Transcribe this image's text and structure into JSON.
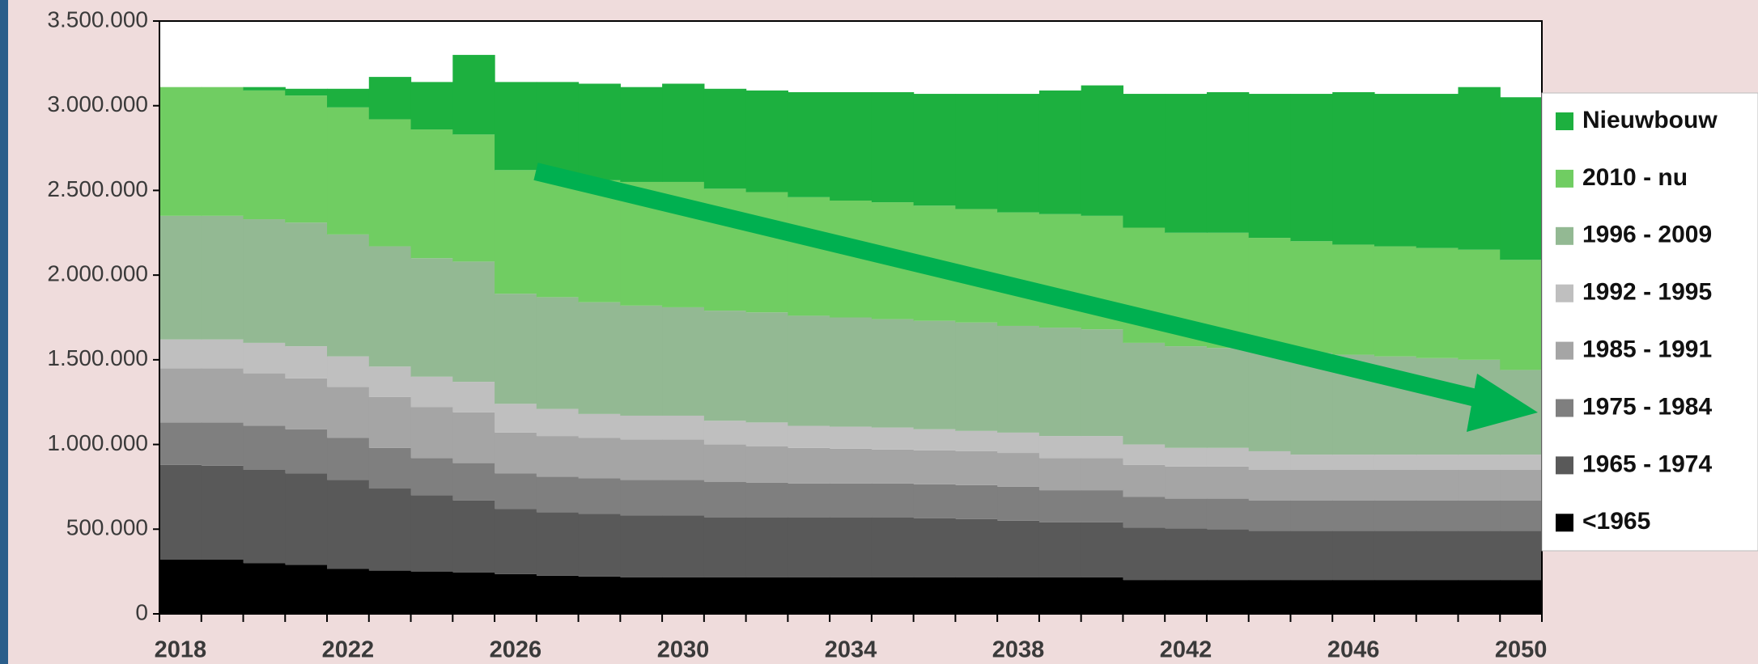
{
  "chart_data": {
    "type": "stacked-step-area",
    "categories": [
      "2018",
      null,
      null,
      null,
      "2022",
      null,
      null,
      null,
      "2026",
      null,
      null,
      null,
      "2030",
      null,
      null,
      null,
      "2034",
      null,
      null,
      null,
      "2038",
      null,
      null,
      null,
      "2042",
      null,
      null,
      null,
      "2046",
      null,
      null,
      null,
      "2050"
    ],
    "ylim": [
      0,
      3500000
    ],
    "yticks": [
      0,
      {
        "value": 500000,
        "label": "500.000"
      },
      {
        "value": 1000000,
        "label": "1.000.000"
      },
      {
        "value": 1500000,
        "label": "1.500.000"
      },
      {
        "value": 2000000,
        "label": "2.000.000"
      },
      {
        "value": 2500000,
        "label": "2.500.000"
      },
      {
        "value": 3000000,
        "label": "3.000.000"
      },
      {
        "value": 3500000,
        "label": "3.500.000"
      }
    ],
    "legend": "right",
    "series": [
      {
        "name": "<1965",
        "color": "#000000",
        "values": [
          320000,
          320000,
          300000,
          290000,
          265000,
          255000,
          250000,
          245000,
          235000,
          225000,
          220000,
          215000,
          215000,
          215000,
          215000,
          215000,
          215000,
          215000,
          215000,
          215000,
          215000,
          215000,
          215000,
          200000,
          200000,
          200000,
          200000,
          200000,
          200000,
          200000,
          200000,
          200000,
          200000
        ]
      },
      {
        "name": "1965 - 1974",
        "color": "#595959",
        "values": [
          560000,
          555000,
          550000,
          540000,
          525000,
          485000,
          450000,
          425000,
          385000,
          375000,
          370000,
          365000,
          365000,
          355000,
          355000,
          355000,
          355000,
          355000,
          350000,
          345000,
          335000,
          325000,
          325000,
          310000,
          305000,
          300000,
          290000,
          290000,
          290000,
          290000,
          290000,
          290000,
          290000
        ]
      },
      {
        "name": "1975 - 1984",
        "color": "#7f7f7f",
        "values": [
          250000,
          255000,
          260000,
          260000,
          250000,
          240000,
          220000,
          220000,
          210000,
          210000,
          210000,
          210000,
          210000,
          210000,
          205000,
          200000,
          200000,
          200000,
          200000,
          200000,
          200000,
          190000,
          190000,
          180000,
          175000,
          180000,
          180000,
          180000,
          180000,
          180000,
          180000,
          180000,
          180000
        ]
      },
      {
        "name": "1985 - 1991",
        "color": "#a5a5a5",
        "values": [
          320000,
          320000,
          310000,
          300000,
          300000,
          300000,
          300000,
          300000,
          240000,
          240000,
          240000,
          240000,
          240000,
          220000,
          215000,
          210000,
          205000,
          200000,
          200000,
          200000,
          200000,
          190000,
          190000,
          190000,
          190000,
          190000,
          180000,
          180000,
          180000,
          180000,
          180000,
          180000,
          180000
        ]
      },
      {
        "name": "1992 - 1995",
        "color": "#bfbfbf",
        "values": [
          170000,
          170000,
          180000,
          190000,
          180000,
          180000,
          180000,
          180000,
          170000,
          160000,
          140000,
          140000,
          140000,
          140000,
          140000,
          130000,
          130000,
          130000,
          125000,
          120000,
          120000,
          130000,
          130000,
          120000,
          110000,
          110000,
          110000,
          90000,
          90000,
          90000,
          90000,
          90000,
          90000
        ]
      },
      {
        "name": "1996 - 2009",
        "color": "#93b993",
        "values": [
          730000,
          730000,
          730000,
          730000,
          720000,
          710000,
          700000,
          710000,
          650000,
          660000,
          660000,
          650000,
          640000,
          650000,
          650000,
          650000,
          645000,
          640000,
          640000,
          640000,
          630000,
          640000,
          630000,
          600000,
          600000,
          590000,
          590000,
          600000,
          590000,
          580000,
          570000,
          560000,
          500000
        ]
      },
      {
        "name": "2010 - nu",
        "color": "#70cd62",
        "values": [
          760000,
          760000,
          760000,
          750000,
          750000,
          750000,
          760000,
          750000,
          730000,
          710000,
          720000,
          730000,
          740000,
          720000,
          710000,
          700000,
          690000,
          690000,
          680000,
          670000,
          670000,
          670000,
          670000,
          680000,
          670000,
          680000,
          670000,
          660000,
          650000,
          650000,
          650000,
          650000,
          650000
        ]
      },
      {
        "name": "Nieuwbouw",
        "color": "#1db03f",
        "values": [
          0,
          0,
          20000,
          40000,
          110000,
          250000,
          280000,
          470000,
          520000,
          560000,
          570000,
          560000,
          580000,
          590000,
          600000,
          620000,
          640000,
          650000,
          660000,
          680000,
          700000,
          730000,
          770000,
          790000,
          820000,
          830000,
          850000,
          870000,
          900000,
          900000,
          910000,
          960000,
          960000
        ]
      }
    ]
  }
}
